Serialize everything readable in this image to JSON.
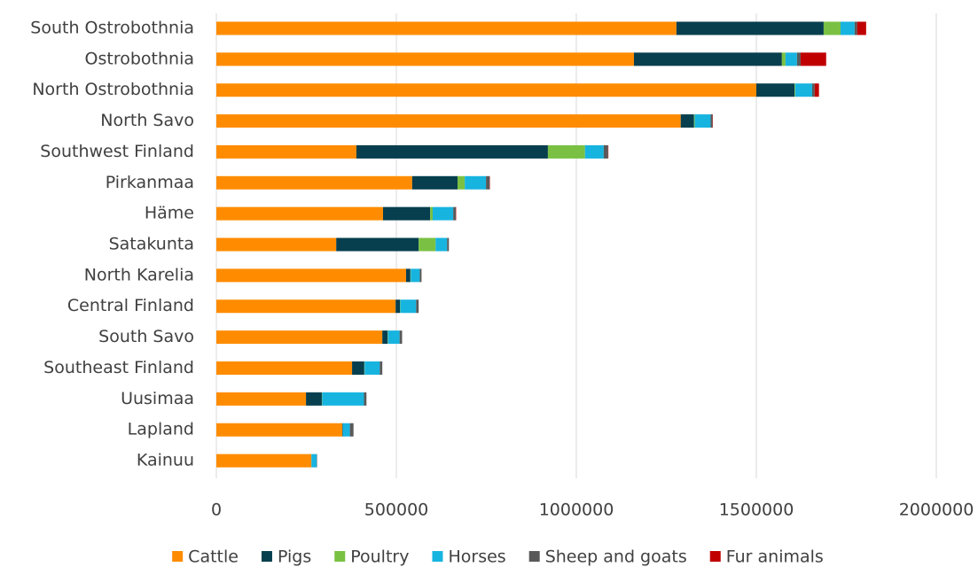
{
  "chart_data": {
    "type": "stacked-bar-horizontal",
    "categories": [
      "South Ostrobothnia",
      "Ostrobothnia",
      "North Ostrobothnia",
      "North Savo",
      "Southwest Finland",
      "Pirkanmaa",
      "Häme",
      "Satakunta",
      "North Karelia",
      "Central Finland",
      "South Savo",
      "Southeast Finland",
      "Uusimaa",
      "Lapland",
      "Kainuu"
    ],
    "series": [
      {
        "name": "Cattle",
        "color": "#ff8c00",
        "values": [
          1278000,
          1160000,
          1500000,
          1290000,
          389000,
          544000,
          463000,
          333000,
          527000,
          498000,
          461000,
          377000,
          249000,
          350000,
          264000
        ]
      },
      {
        "name": "Pigs",
        "color": "#073f4f",
        "values": [
          409000,
          411000,
          106000,
          37000,
          532000,
          126000,
          131000,
          229000,
          12000,
          12000,
          15000,
          34000,
          44000,
          1000,
          0
        ]
      },
      {
        "name": "Poultry",
        "color": "#7ac143",
        "values": [
          47000,
          10000,
          2000,
          2000,
          103000,
          20000,
          7000,
          47000,
          1000,
          1000,
          1000,
          1000,
          1000,
          0,
          0
        ]
      },
      {
        "name": "Horses",
        "color": "#17b4e0",
        "values": [
          39000,
          32000,
          47000,
          44000,
          52000,
          59000,
          57000,
          32000,
          25000,
          44000,
          32000,
          42000,
          116000,
          20000,
          15000
        ]
      },
      {
        "name": "Sheep and goats",
        "color": "#595959",
        "values": [
          7000,
          10000,
          7000,
          5000,
          12000,
          10000,
          7000,
          5000,
          5000,
          7000,
          7000,
          7000,
          7000,
          10000,
          1000
        ]
      },
      {
        "name": "Fur animals",
        "color": "#c00000",
        "values": [
          25000,
          71000,
          12000,
          1000,
          1000,
          1000,
          1000,
          0,
          0,
          0,
          0,
          0,
          0,
          0,
          0
        ]
      }
    ],
    "xlim": [
      0,
      2000000
    ],
    "xticks": [
      0,
      500000,
      1000000,
      1500000,
      2000000
    ],
    "grid": true,
    "legend": "bottom"
  }
}
